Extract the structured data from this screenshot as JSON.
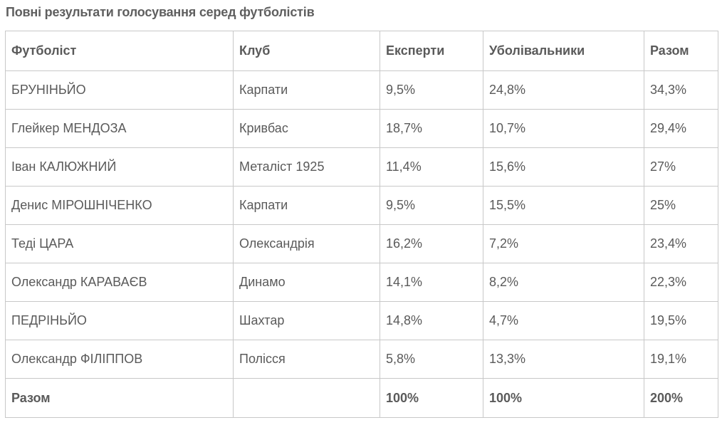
{
  "title": "Повні результати голосування серед футболістів",
  "table": {
    "headers": [
      "Футболіст",
      "Клуб",
      "Експерти",
      "Уболівальники",
      "Разом"
    ],
    "rows": [
      [
        "БРУНІНЬЙО",
        "Карпати",
        "9,5%",
        "24,8%",
        "34,3%"
      ],
      [
        "Глейкер МЕНДОЗА",
        "Кривбас",
        "18,7%",
        "10,7%",
        "29,4%"
      ],
      [
        "Іван КАЛЮЖНИЙ",
        "Металіст 1925",
        "11,4%",
        "15,6%",
        "27%"
      ],
      [
        "Денис МІРОШНІЧЕНКО",
        "Карпати",
        "9,5%",
        "15,5%",
        "25%"
      ],
      [
        "Теді ЦАРА",
        "Олександрія",
        "16,2%",
        "7,2%",
        "23,4%"
      ],
      [
        "Олександр КАРАВАЄВ",
        "Динамо",
        "14,1%",
        "8,2%",
        "22,3%"
      ],
      [
        "ПЕДРІНЬЙО",
        "Шахтар",
        "14,8%",
        "4,7%",
        "19,5%"
      ],
      [
        "Олександр ФІЛІППОВ",
        "Полісся",
        "5,8%",
        "13,3%",
        "19,1%"
      ]
    ],
    "total": [
      "Разом",
      "",
      "100%",
      "100%",
      "200%"
    ]
  }
}
